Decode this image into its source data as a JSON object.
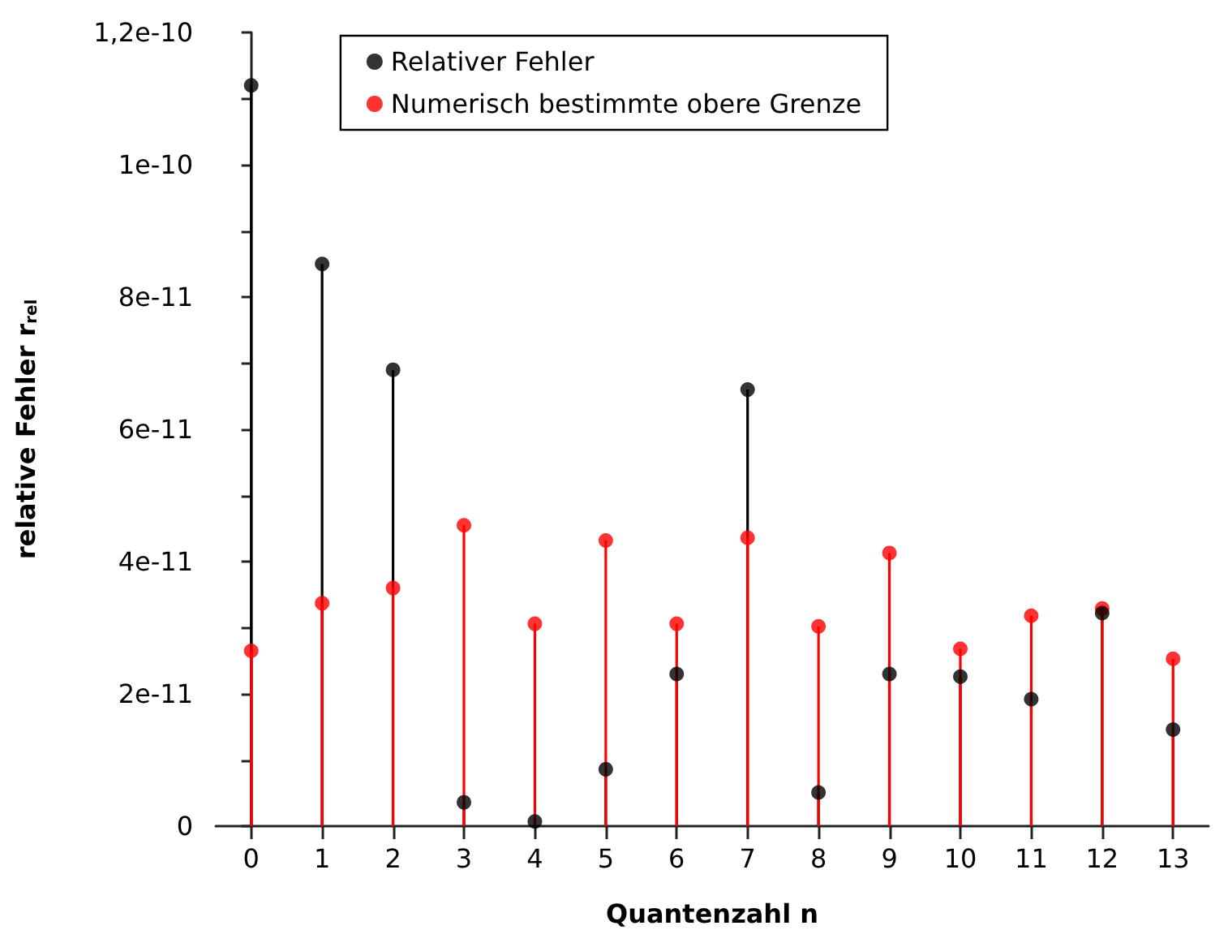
{
  "chart_data": {
    "type": "lollipop",
    "xlabel": "Quantenzahl n",
    "ylabel": "relative Fehler r$_{rel}$",
    "x": [
      0,
      1,
      2,
      3,
      4,
      5,
      6,
      7,
      8,
      9,
      10,
      11,
      12,
      13
    ],
    "series": [
      {
        "name": "Relativer Fehler",
        "color": "#000000",
        "values": [
          1.12e-10,
          8.5e-11,
          6.9e-11,
          3.6e-12,
          7e-13,
          8.6e-12,
          2.3e-11,
          6.6e-11,
          5.1e-12,
          2.3e-11,
          2.26e-11,
          1.92e-11,
          3.22e-11,
          1.46e-11
        ]
      },
      {
        "name": "Numerisch bestimmte obere Grenze",
        "color": "#ff0000",
        "values": [
          2.65e-11,
          3.37e-11,
          3.6e-11,
          4.55e-11,
          3.06e-11,
          4.32e-11,
          3.06e-11,
          4.36e-11,
          3.02e-11,
          4.13e-11,
          2.68e-11,
          3.18e-11,
          3.29e-11,
          2.53e-11
        ]
      }
    ],
    "xlim": [
      -0.5,
      13.5
    ],
    "xticks": [
      0,
      1,
      2,
      3,
      4,
      5,
      6,
      7,
      8,
      9,
      10,
      11,
      12,
      13
    ],
    "ylim": [
      0,
      1.2e-10
    ],
    "yticks": [
      {
        "value": 0,
        "label": "0"
      },
      {
        "value": 1e-11,
        "label": null
      },
      {
        "value": 2e-11,
        "label": "2e-11"
      },
      {
        "value": 3e-11,
        "label": null
      },
      {
        "value": 4e-11,
        "label": "4e-11"
      },
      {
        "value": 5e-11,
        "label": null
      },
      {
        "value": 6e-11,
        "label": "6e-11"
      },
      {
        "value": 7e-11,
        "label": null
      },
      {
        "value": 8e-11,
        "label": "8e-11"
      },
      {
        "value": 9e-11,
        "label": null
      },
      {
        "value": 1e-10,
        "label": "1e-10"
      },
      {
        "value": 1.1e-10,
        "label": null
      },
      {
        "value": 1.2e-10,
        "label": "1,2e-10"
      }
    ],
    "legend": "top",
    "grid": false,
    "marker": "circle"
  }
}
